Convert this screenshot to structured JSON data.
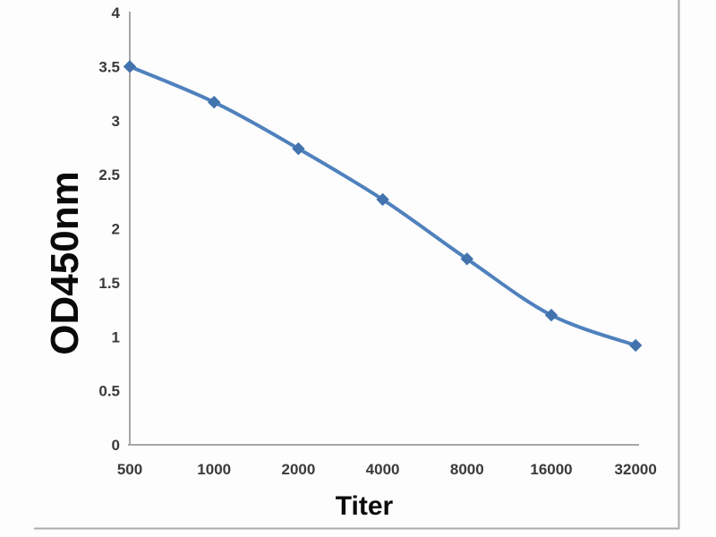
{
  "chart_data": {
    "type": "line",
    "title": "",
    "xlabel": "Titer",
    "ylabel": "OD450nm",
    "categories": [
      "500",
      "1000",
      "2000",
      "4000",
      "8000",
      "16000",
      "32000"
    ],
    "series": [
      {
        "name": "OD450nm",
        "values": [
          3.5,
          3.17,
          2.74,
          2.27,
          1.72,
          1.2,
          0.92
        ]
      }
    ],
    "ylim": [
      0,
      4
    ],
    "ytick_labels": [
      "4",
      "3.5",
      "3",
      "2.5",
      "2",
      "1.5",
      "1",
      "0.5",
      "0"
    ],
    "ytick_values": [
      4,
      3.5,
      3,
      2.5,
      2,
      1.5,
      1,
      0.5,
      0
    ],
    "grid": "off",
    "legend": "none",
    "smooth": true,
    "marker_shape": "diamond",
    "colors": {
      "line": "#4f81bd",
      "marker": "#4273ad",
      "axis": "#a6a6a6",
      "tick_text": "#3a3a3a",
      "frame": "#ababab",
      "background": "#fdfdfd"
    }
  }
}
